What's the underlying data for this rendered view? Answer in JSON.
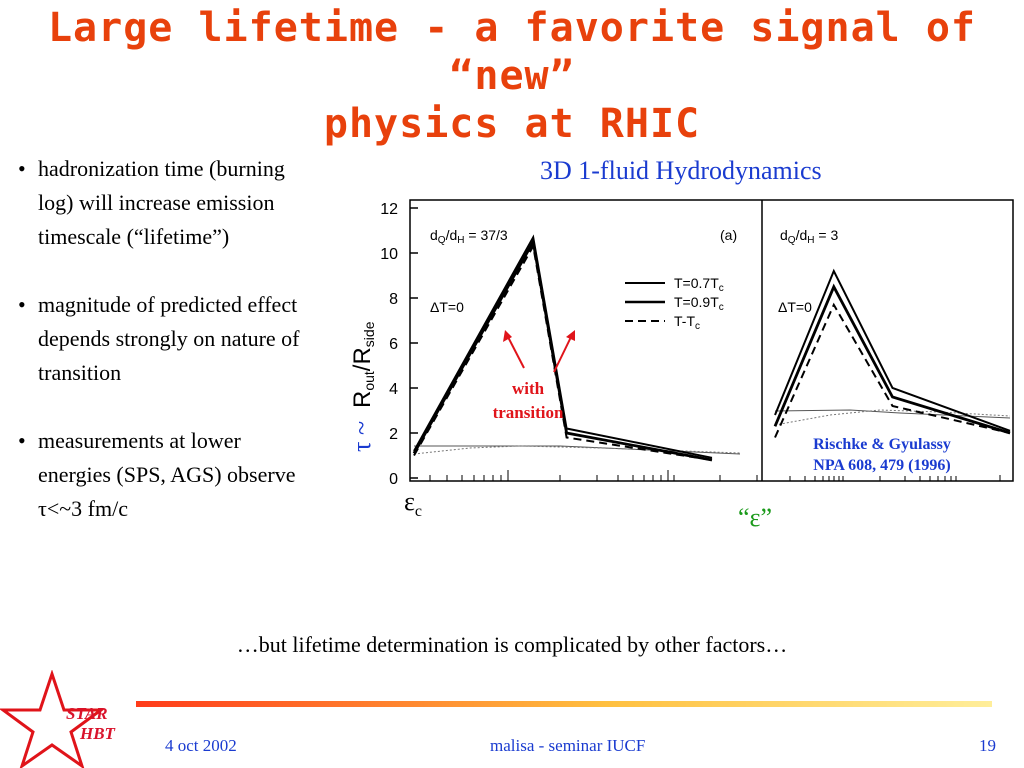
{
  "slide": {
    "title_line1": "Large lifetime - a favorite signal of “new”",
    "title_line2": "physics at RHIC",
    "bullets": [
      "hadronization time (burning log) will increase emission timescale (“lifetime”)",
      "magnitude of predicted effect depends strongly on nature of transition",
      "measurements at lower energies (SPS, AGS) observe τ<~3 fm/c"
    ],
    "bullet_symbol": "•",
    "bottom_note": "…but lifetime determination is complicated by other factors…",
    "footer": {
      "date": "4 oct 2002",
      "center": "malisa - seminar IUCF",
      "page": "19"
    },
    "logo": {
      "line1": "STAR",
      "line2": "HBT"
    }
  },
  "chart_data": {
    "type": "line",
    "title": "3D 1-fluid Hydrodynamics",
    "ylabel_tau": "τ ~",
    "ylabel_main": "R",
    "ylabel_sub1": "out",
    "ylabel_slash": "/R",
    "ylabel_sub2": "side",
    "x_marker_left": "ε",
    "x_marker_left_sub": "c",
    "x_marker_right": "“ε”",
    "ylim": [
      0,
      12
    ],
    "yticks": [
      "0",
      "2",
      "4",
      "6",
      "8",
      "10",
      "12"
    ],
    "panels": [
      {
        "tag": "(a)",
        "ratio_text": "d",
        "ratio_sub1": "Q",
        "ratio_mid": "/d",
        "ratio_sub2": "H",
        "ratio_value": " = 37/3",
        "delta_t": "ΔT=0",
        "series": [
          {
            "style": "solid",
            "x": [
              0,
              1,
              1.28,
              2.5
            ],
            "y": [
              1.2,
              10.7,
              2.2,
              0.9
            ]
          },
          {
            "style": "solid",
            "x": [
              0,
              1,
              1.28,
              2.5
            ],
            "y": [
              1.1,
              10.5,
              2.0,
              0.8
            ]
          },
          {
            "style": "dashed",
            "x": [
              0,
              1,
              1.28,
              2.5
            ],
            "y": [
              1.0,
              10.3,
              1.8,
              0.8
            ]
          }
        ]
      },
      {
        "tag": "",
        "ratio_text": "d",
        "ratio_sub1": "Q",
        "ratio_mid": "/d",
        "ratio_sub2": "H",
        "ratio_value": " = 3",
        "delta_t": "ΔT=0",
        "series": [
          {
            "style": "solid",
            "x": [
              0,
              0.5,
              1,
              2
            ],
            "y": [
              2.8,
              9.2,
              4.0,
              2.1
            ]
          },
          {
            "style": "solid",
            "x": [
              0,
              0.5,
              1,
              2
            ],
            "y": [
              2.3,
              8.5,
              3.6,
              2.0
            ]
          },
          {
            "style": "dashed",
            "x": [
              0,
              0.5,
              1,
              2
            ],
            "y": [
              1.8,
              7.7,
              3.2,
              2.0
            ]
          }
        ]
      }
    ],
    "legend": [
      {
        "label": "T=0.7T",
        "sub": "c",
        "style": "solid"
      },
      {
        "label": "T=0.9T",
        "sub": "c",
        "style": "solid"
      },
      {
        "label": "T-T",
        "sub": "c",
        "style": "dashed"
      }
    ],
    "annotation_transition": [
      "with",
      "transition"
    ],
    "citation": [
      "Rischke & Gyulassy",
      "NPA 608, 479 (1996)"
    ]
  }
}
